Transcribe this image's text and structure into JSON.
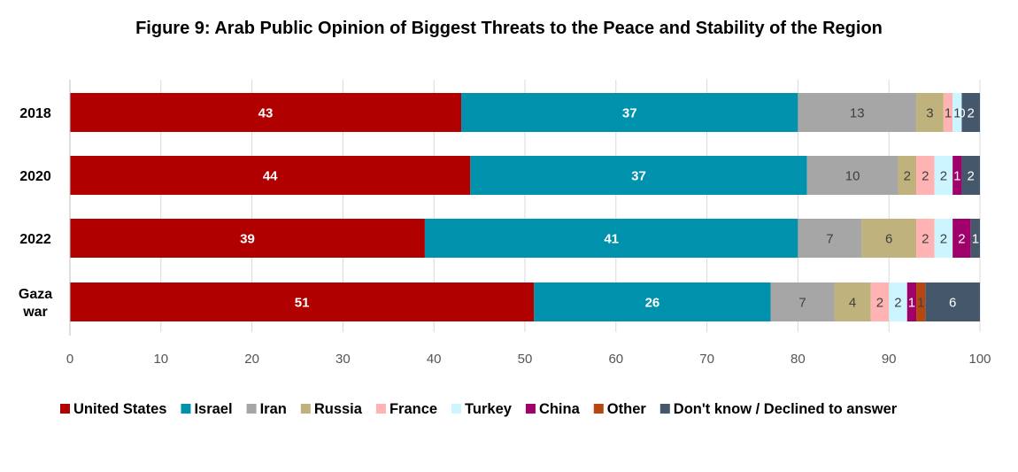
{
  "chart_data": {
    "type": "bar",
    "orientation": "horizontal",
    "stacked": true,
    "title": "Figure 9: Arab Public Opinion of Biggest Threats to the Peace and Stability of the Region",
    "categories": [
      "2018",
      "2020",
      "2022",
      "Gaza war"
    ],
    "xlim": [
      0,
      100
    ],
    "xticks": [
      "0",
      "10",
      "20",
      "30",
      "40",
      "50",
      "60",
      "70",
      "80",
      "90",
      "100"
    ],
    "grid": true,
    "legend_position": "bottom",
    "series": [
      {
        "name": "United States",
        "color": "#b00000",
        "label_color": "#ffffff",
        "values": [
          43,
          44,
          39,
          51
        ]
      },
      {
        "name": "Israel",
        "color": "#0091ad",
        "label_color": "#ffffff",
        "values": [
          37,
          37,
          41,
          26
        ]
      },
      {
        "name": "Iran",
        "color": "#a6a6a6",
        "label_color": "#404040",
        "values": [
          13,
          10,
          7,
          7
        ]
      },
      {
        "name": "Russia",
        "color": "#bfb27d",
        "label_color": "#404040",
        "values": [
          3,
          2,
          6,
          4
        ]
      },
      {
        "name": "France",
        "color": "#ffb3b3",
        "label_color": "#404040",
        "values": [
          1,
          2,
          2,
          2
        ]
      },
      {
        "name": "Turkey",
        "color": "#ccf5ff",
        "label_color": "#404040",
        "values": [
          1,
          2,
          2,
          2
        ]
      },
      {
        "name": "China",
        "color": "#a0006a",
        "label_color": "#ffffff",
        "values": [
          0,
          1,
          2,
          1
        ]
      },
      {
        "name": "Other",
        "color": "#b5470f",
        "label_color": "#404040",
        "values": [
          0,
          0,
          0,
          1
        ]
      },
      {
        "name": "Don't know / Declined to answer",
        "color": "#45586b",
        "label_color": "#ffffff",
        "values": [
          2,
          2,
          1,
          6
        ]
      }
    ],
    "data_labels": [
      [
        "43",
        "37",
        "13",
        "3",
        "1",
        "1",
        "0",
        "",
        "2"
      ],
      [
        "44",
        "37",
        "10",
        "2",
        "2",
        "2",
        "1",
        "",
        "2"
      ],
      [
        "39",
        "41",
        "7",
        "6",
        "2",
        "2",
        "2",
        "",
        "1"
      ],
      [
        "51",
        "26",
        "7",
        "4",
        "2",
        "2",
        "1",
        "1",
        "6"
      ]
    ]
  }
}
